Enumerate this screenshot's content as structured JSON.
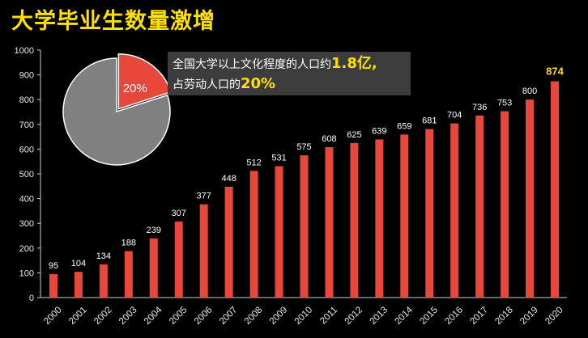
{
  "title": "大学毕业生数量激增",
  "callout": {
    "line1_prefix": "全国大学以上文化程度的人口约",
    "line1_highlight": "1.8亿,",
    "line2_prefix": "占劳动人口的",
    "line2_highlight": "20%"
  },
  "colors": {
    "background": "#000000",
    "bar": "#e8473c",
    "title": "#ffe100",
    "highlight": "#ffe100",
    "pie_main": "#808080",
    "pie_slice": "#e8473c",
    "callout_bg": "#3c3c3c"
  },
  "chart_data": [
    {
      "type": "bar",
      "categories": [
        "2000",
        "2001",
        "2002",
        "2003",
        "2004",
        "2005",
        "2006",
        "2007",
        "2008",
        "2009",
        "2010",
        "2011",
        "2012",
        "2013",
        "2014",
        "2015",
        "2016",
        "2017",
        "2018",
        "2019",
        "2020"
      ],
      "values": [
        95,
        104,
        134,
        188,
        239,
        307,
        377,
        448,
        512,
        531,
        575,
        608,
        625,
        639,
        659,
        681,
        704,
        736,
        753,
        800,
        874
      ],
      "ylim": [
        0,
        1000
      ],
      "yticks": [
        0,
        100,
        200,
        300,
        400,
        500,
        600,
        700,
        800,
        900,
        1000
      ],
      "ytick_labels": [
        "0",
        "100",
        "200",
        "300",
        "400",
        "500",
        "600",
        "700",
        "800",
        "900",
        "1000"
      ],
      "highlight_category": "2020",
      "grid": false
    },
    {
      "type": "pie",
      "slices": [
        {
          "label": "20%",
          "value": 20
        },
        {
          "label": "",
          "value": 80
        }
      ]
    }
  ]
}
